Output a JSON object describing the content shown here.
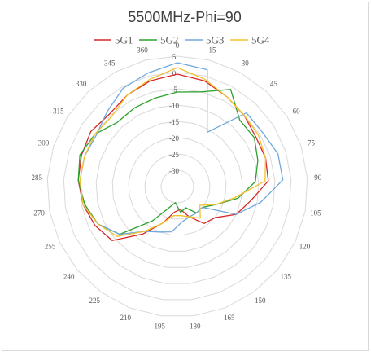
{
  "chart_data": {
    "type": "radar",
    "title": "5500MHz-Phi=90",
    "legend_position": "top",
    "grid": true,
    "categories": [
      "0",
      "15",
      "30",
      "45",
      "60",
      "75",
      "90",
      "105",
      "120",
      "135",
      "150",
      "165",
      "180",
      "195",
      "210",
      "225",
      "240",
      "255",
      "270",
      "285",
      "300",
      "315",
      "330",
      "345",
      "360"
    ],
    "radial_ticks": [
      5,
      0,
      -5,
      -10,
      -15,
      -20,
      -25,
      -30
    ],
    "rlim": [
      -35,
      5
    ],
    "series": [
      {
        "name": "5G1",
        "color": "#d62728",
        "values": [
          -0.5,
          -1.5,
          -3.5,
          -5,
          -6.5,
          -6.5,
          -7,
          -12,
          -15,
          -20,
          -21,
          -25,
          -28,
          -27,
          -23,
          -17,
          -9,
          -7,
          -5.5,
          -4.5,
          -4,
          -3.5,
          -4.5,
          -3,
          -1.5
        ]
      },
      {
        "name": "5G2",
        "color": "#2ca02c",
        "values": [
          -6,
          -5,
          -1,
          -7,
          -7,
          -9,
          -11,
          -16,
          -22,
          -25,
          -25,
          -28,
          -27,
          -30,
          -28,
          -22,
          -12,
          -8,
          -6,
          -4.5,
          -3.5,
          -5,
          -8,
          -7.5,
          -7
        ]
      },
      {
        "name": "5G3",
        "color": "#6fa8dc",
        "values": [
          3,
          2,
          -16,
          -4,
          -4,
          -2.5,
          -2.5,
          -9,
          -15,
          -25,
          -25,
          -25,
          -24,
          -21,
          -20,
          -18,
          -12,
          -8,
          -5.5,
          -5,
          -5,
          -5.5,
          -3.5,
          -0.5,
          1
        ]
      },
      {
        "name": "5G4",
        "color": "#f2c12e",
        "values": [
          1.5,
          -1,
          -3.5,
          -5,
          -5.5,
          -6.5,
          -8,
          -17,
          -22,
          -26,
          -23,
          -25,
          -26,
          -26,
          -23,
          -18,
          -11,
          -8,
          -5.5,
          -5,
          -5,
          -5,
          -5.5,
          -3,
          -1
        ]
      }
    ]
  }
}
